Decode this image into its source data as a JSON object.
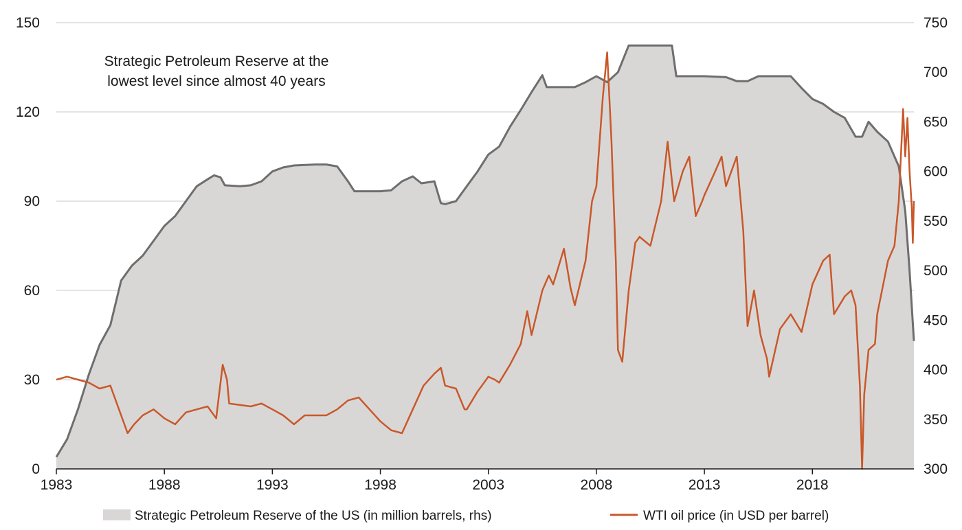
{
  "chart_data": {
    "type": "area",
    "annotation": [
      "Strategic Petroleum Reserve at the",
      "lowest level since almost 40 years"
    ],
    "x_ticks": [
      "1983",
      "1988",
      "1993",
      "1998",
      "2003",
      "2008",
      "2013",
      "2018"
    ],
    "x_range": [
      1983,
      2022.7
    ],
    "y_left": {
      "ticks": [
        "0",
        "30",
        "60",
        "90",
        "120",
        "150"
      ],
      "range": [
        0,
        150
      ]
    },
    "y_right": {
      "ticks": [
        "300",
        "350",
        "400",
        "450",
        "500",
        "550",
        "600",
        "650",
        "700",
        "750"
      ],
      "range": [
        300,
        750
      ]
    },
    "grid": "horizontal",
    "legend_position": "bottom",
    "colors": {
      "spr_fill": "#d9d7d6",
      "spr_line": "#6e6e6e",
      "wti_line": "#c9582a",
      "grid": "#c8c8c8"
    },
    "series": [
      {
        "name": "Strategic Petroleum Reserve of the US (in million barrels, rhs)",
        "axis": "right",
        "style": "area",
        "points": [
          [
            1983.0,
            312
          ],
          [
            1983.5,
            330
          ],
          [
            1984.0,
            360
          ],
          [
            1984.5,
            395
          ],
          [
            1985.0,
            425
          ],
          [
            1985.5,
            445
          ],
          [
            1986.0,
            490
          ],
          [
            1986.5,
            505
          ],
          [
            1987.0,
            515
          ],
          [
            1987.5,
            530
          ],
          [
            1988.0,
            545
          ],
          [
            1988.5,
            555
          ],
          [
            1989.0,
            570
          ],
          [
            1989.5,
            585
          ],
          [
            1990.0,
            592
          ],
          [
            1990.3,
            596
          ],
          [
            1990.6,
            594
          ],
          [
            1990.8,
            586
          ],
          [
            1991.5,
            585
          ],
          [
            1992.0,
            586
          ],
          [
            1992.5,
            590
          ],
          [
            1993.0,
            600
          ],
          [
            1993.5,
            604
          ],
          [
            1994.0,
            606
          ],
          [
            1995.0,
            607
          ],
          [
            1995.5,
            607
          ],
          [
            1996.0,
            605
          ],
          [
            1996.5,
            590
          ],
          [
            1996.8,
            580
          ],
          [
            1997.0,
            580
          ],
          [
            1998.0,
            580
          ],
          [
            1998.5,
            581
          ],
          [
            1999.0,
            590
          ],
          [
            1999.5,
            595
          ],
          [
            1999.9,
            588
          ],
          [
            2000.5,
            590
          ],
          [
            2000.8,
            568
          ],
          [
            2001.0,
            567
          ],
          [
            2001.5,
            570
          ],
          [
            2002.0,
            585
          ],
          [
            2002.5,
            600
          ],
          [
            2003.0,
            617
          ],
          [
            2003.5,
            625
          ],
          [
            2004.0,
            645
          ],
          [
            2004.5,
            662
          ],
          [
            2005.0,
            680
          ],
          [
            2005.5,
            697
          ],
          [
            2005.7,
            685
          ],
          [
            2006.0,
            685
          ],
          [
            2006.5,
            685
          ],
          [
            2007.0,
            685
          ],
          [
            2007.5,
            690
          ],
          [
            2008.0,
            696
          ],
          [
            2008.5,
            690
          ],
          [
            2009.0,
            700
          ],
          [
            2009.5,
            727
          ],
          [
            2010.0,
            727
          ],
          [
            2011.0,
            727
          ],
          [
            2011.5,
            727
          ],
          [
            2011.7,
            696
          ],
          [
            2012.0,
            696
          ],
          [
            2013.0,
            696
          ],
          [
            2014.0,
            695
          ],
          [
            2014.5,
            691
          ],
          [
            2015.0,
            691
          ],
          [
            2015.5,
            696
          ],
          [
            2016.0,
            696
          ],
          [
            2017.0,
            696
          ],
          [
            2017.5,
            684
          ],
          [
            2018.0,
            673
          ],
          [
            2018.5,
            668
          ],
          [
            2019.0,
            660
          ],
          [
            2019.5,
            654
          ],
          [
            2020.0,
            635
          ],
          [
            2020.3,
            635
          ],
          [
            2020.6,
            650
          ],
          [
            2021.0,
            640
          ],
          [
            2021.5,
            630
          ],
          [
            2022.0,
            605
          ],
          [
            2022.3,
            560
          ],
          [
            2022.5,
            500
          ],
          [
            2022.7,
            429
          ]
        ]
      },
      {
        "name": "WTI oil price (in USD per barrel)",
        "axis": "left",
        "style": "line",
        "points": [
          [
            1983.0,
            30
          ],
          [
            1983.5,
            31
          ],
          [
            1984.0,
            30
          ],
          [
            1984.5,
            29
          ],
          [
            1985.0,
            27
          ],
          [
            1985.5,
            28
          ],
          [
            1986.0,
            18
          ],
          [
            1986.3,
            12
          ],
          [
            1986.6,
            15
          ],
          [
            1987.0,
            18
          ],
          [
            1987.5,
            20
          ],
          [
            1988.0,
            17
          ],
          [
            1988.5,
            15
          ],
          [
            1989.0,
            19
          ],
          [
            1989.5,
            20
          ],
          [
            1990.0,
            21
          ],
          [
            1990.4,
            17
          ],
          [
            1990.7,
            35
          ],
          [
            1990.9,
            30
          ],
          [
            1991.0,
            22
          ],
          [
            1992.0,
            21
          ],
          [
            1992.5,
            22
          ],
          [
            1993.0,
            20
          ],
          [
            1993.5,
            18
          ],
          [
            1994.0,
            15
          ],
          [
            1994.5,
            18
          ],
          [
            1995.0,
            18
          ],
          [
            1995.5,
            18
          ],
          [
            1996.0,
            20
          ],
          [
            1996.5,
            23
          ],
          [
            1997.0,
            24
          ],
          [
            1997.5,
            20
          ],
          [
            1998.0,
            16
          ],
          [
            1998.5,
            13
          ],
          [
            1999.0,
            12
          ],
          [
            1999.5,
            20
          ],
          [
            2000.0,
            28
          ],
          [
            2000.5,
            32
          ],
          [
            2000.8,
            34
          ],
          [
            2001.0,
            28
          ],
          [
            2001.5,
            27
          ],
          [
            2001.9,
            20
          ],
          [
            2002.0,
            20
          ],
          [
            2002.5,
            26
          ],
          [
            2003.0,
            31
          ],
          [
            2003.3,
            30
          ],
          [
            2003.5,
            29
          ],
          [
            2004.0,
            35
          ],
          [
            2004.5,
            42
          ],
          [
            2004.8,
            53
          ],
          [
            2005.0,
            45
          ],
          [
            2005.5,
            60
          ],
          [
            2005.8,
            65
          ],
          [
            2006.0,
            62
          ],
          [
            2006.5,
            74
          ],
          [
            2006.8,
            61
          ],
          [
            2007.0,
            55
          ],
          [
            2007.5,
            70
          ],
          [
            2007.8,
            90
          ],
          [
            2008.0,
            95
          ],
          [
            2008.3,
            125
          ],
          [
            2008.5,
            140
          ],
          [
            2008.7,
            110
          ],
          [
            2008.9,
            70
          ],
          [
            2009.0,
            40
          ],
          [
            2009.2,
            36
          ],
          [
            2009.5,
            60
          ],
          [
            2009.8,
            76
          ],
          [
            2010.0,
            78
          ],
          [
            2010.5,
            75
          ],
          [
            2010.8,
            84
          ],
          [
            2011.0,
            90
          ],
          [
            2011.3,
            110
          ],
          [
            2011.6,
            90
          ],
          [
            2012.0,
            100
          ],
          [
            2012.3,
            105
          ],
          [
            2012.6,
            85
          ],
          [
            2012.9,
            90
          ],
          [
            2013.0,
            92
          ],
          [
            2013.5,
            100
          ],
          [
            2013.8,
            105
          ],
          [
            2014.0,
            95
          ],
          [
            2014.5,
            105
          ],
          [
            2014.8,
            80
          ],
          [
            2015.0,
            48
          ],
          [
            2015.3,
            60
          ],
          [
            2015.6,
            45
          ],
          [
            2015.9,
            37
          ],
          [
            2016.0,
            31
          ],
          [
            2016.5,
            47
          ],
          [
            2017.0,
            52
          ],
          [
            2017.5,
            46
          ],
          [
            2018.0,
            62
          ],
          [
            2018.5,
            70
          ],
          [
            2018.8,
            72
          ],
          [
            2019.0,
            52
          ],
          [
            2019.5,
            58
          ],
          [
            2019.8,
            60
          ],
          [
            2020.0,
            55
          ],
          [
            2020.2,
            28
          ],
          [
            2020.3,
            0
          ],
          [
            2020.4,
            25
          ],
          [
            2020.6,
            40
          ],
          [
            2020.9,
            42
          ],
          [
            2021.0,
            52
          ],
          [
            2021.5,
            70
          ],
          [
            2021.8,
            75
          ],
          [
            2022.0,
            90
          ],
          [
            2022.2,
            121
          ],
          [
            2022.3,
            105
          ],
          [
            2022.4,
            118
          ],
          [
            2022.5,
            100
          ],
          [
            2022.6,
            88
          ],
          [
            2022.65,
            76
          ],
          [
            2022.7,
            90
          ]
        ]
      }
    ]
  }
}
